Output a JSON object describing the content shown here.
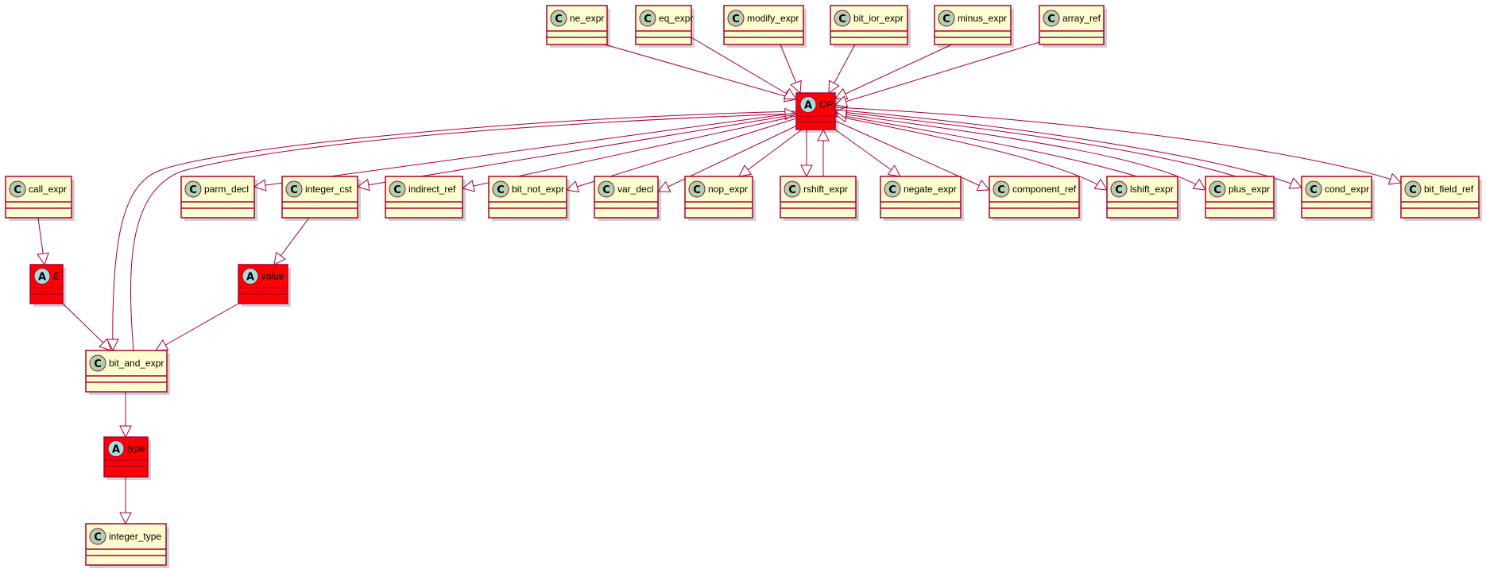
{
  "diagram": {
    "type": "uml-class-diagram",
    "class_badge": "C",
    "abstract_badge": "A",
    "colors": {
      "class_fill": "#FEFECE",
      "abstract_fill": "#FF0000",
      "border": "#A80036",
      "edge": "#A80036",
      "class_badge_fill": "#ADD1B2",
      "abstract_badge_fill": "#A9DCDF"
    },
    "nodes": [
      {
        "id": "ne_expr",
        "label": "ne_expr",
        "kind": "class"
      },
      {
        "id": "eq_expr",
        "label": "eq_expr",
        "kind": "class"
      },
      {
        "id": "modify_expr",
        "label": "modify_expr",
        "kind": "class"
      },
      {
        "id": "bit_ior_expr",
        "label": "bit_ior_expr",
        "kind": "class"
      },
      {
        "id": "minus_expr",
        "label": "minus_expr",
        "kind": "class"
      },
      {
        "id": "array_ref",
        "label": "array_ref",
        "kind": "class"
      },
      {
        "id": "OP",
        "label": "OP",
        "kind": "abstract"
      },
      {
        "id": "call_expr",
        "label": "call_expr",
        "kind": "class"
      },
      {
        "id": "parm_decl",
        "label": "parm_decl",
        "kind": "class"
      },
      {
        "id": "integer_cst",
        "label": "integer_cst",
        "kind": "class"
      },
      {
        "id": "indirect_ref",
        "label": "indirect_ref",
        "kind": "class"
      },
      {
        "id": "bit_not_expr",
        "label": "bit_not_expr",
        "kind": "class"
      },
      {
        "id": "var_decl",
        "label": "var_decl",
        "kind": "class"
      },
      {
        "id": "nop_expr",
        "label": "nop_expr",
        "kind": "class"
      },
      {
        "id": "rshift_expr",
        "label": "rshift_expr",
        "kind": "class"
      },
      {
        "id": "negate_expr",
        "label": "negate_expr",
        "kind": "class"
      },
      {
        "id": "component_ref",
        "label": "component_ref",
        "kind": "class"
      },
      {
        "id": "lshift_expr",
        "label": "lshift_expr",
        "kind": "class"
      },
      {
        "id": "plus_expr",
        "label": "plus_expr",
        "kind": "class"
      },
      {
        "id": "cond_expr",
        "label": "cond_expr",
        "kind": "class"
      },
      {
        "id": "bit_field_ref",
        "label": "bit_field_ref",
        "kind": "class"
      },
      {
        "id": "E",
        "label": "E",
        "kind": "abstract"
      },
      {
        "id": "value",
        "label": "value",
        "kind": "abstract"
      },
      {
        "id": "bit_and_expr",
        "label": "bit_and_expr",
        "kind": "class"
      },
      {
        "id": "type",
        "label": "type",
        "kind": "abstract"
      },
      {
        "id": "integer_type",
        "label": "integer_type",
        "kind": "class"
      }
    ],
    "edges": [
      {
        "from": "ne_expr",
        "to": "OP"
      },
      {
        "from": "eq_expr",
        "to": "OP"
      },
      {
        "from": "modify_expr",
        "to": "OP"
      },
      {
        "from": "bit_ior_expr",
        "to": "OP"
      },
      {
        "from": "minus_expr",
        "to": "OP"
      },
      {
        "from": "array_ref",
        "to": "OP"
      },
      {
        "from": "OP",
        "to": "bit_and_expr"
      },
      {
        "from": "bit_and_expr",
        "to": "OP"
      },
      {
        "from": "OP",
        "to": "parm_decl"
      },
      {
        "from": "OP",
        "to": "integer_cst"
      },
      {
        "from": "OP",
        "to": "indirect_ref"
      },
      {
        "from": "OP",
        "to": "bit_not_expr"
      },
      {
        "from": "OP",
        "to": "var_decl"
      },
      {
        "from": "OP",
        "to": "nop_expr"
      },
      {
        "from": "OP",
        "to": "rshift_expr"
      },
      {
        "from": "rshift_expr",
        "to": "OP"
      },
      {
        "from": "OP",
        "to": "negate_expr"
      },
      {
        "from": "OP",
        "to": "component_ref"
      },
      {
        "from": "OP",
        "to": "lshift_expr"
      },
      {
        "from": "lshift_expr",
        "to": "OP"
      },
      {
        "from": "OP",
        "to": "plus_expr"
      },
      {
        "from": "plus_expr",
        "to": "OP"
      },
      {
        "from": "OP",
        "to": "cond_expr"
      },
      {
        "from": "OP",
        "to": "bit_field_ref"
      },
      {
        "from": "call_expr",
        "to": "E"
      },
      {
        "from": "E",
        "to": "bit_and_expr"
      },
      {
        "from": "integer_cst",
        "to": "value"
      },
      {
        "from": "value",
        "to": "bit_and_expr"
      },
      {
        "from": "bit_and_expr",
        "to": "type"
      },
      {
        "from": "type",
        "to": "integer_type"
      }
    ]
  }
}
